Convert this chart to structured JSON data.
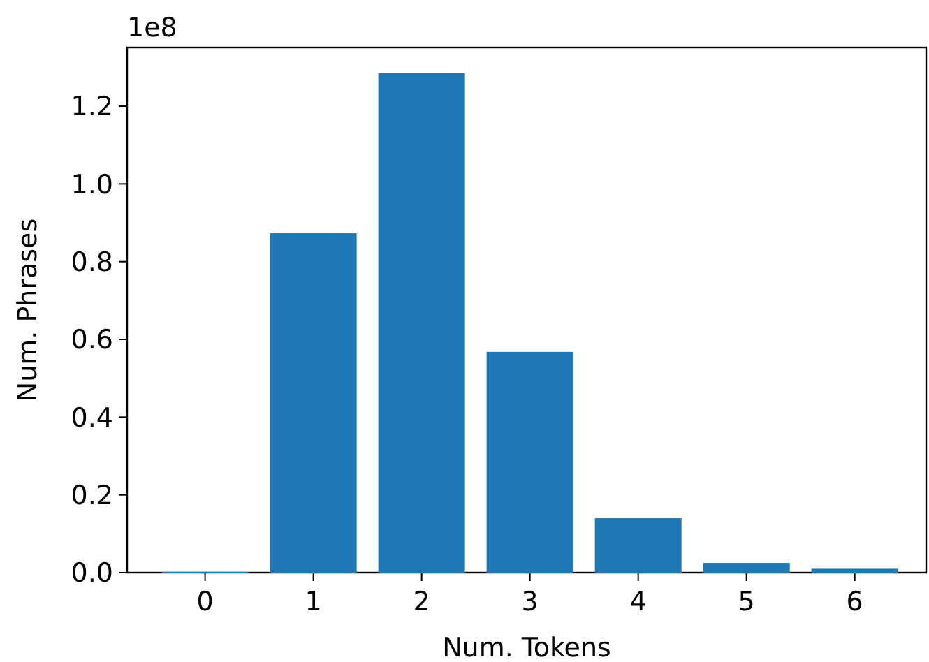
{
  "chart_data": {
    "type": "bar",
    "xlabel": "Num. Tokens",
    "ylabel": "Num. Phrases",
    "annotations": [
      "1e8"
    ],
    "x": [
      0,
      1,
      2,
      3,
      4,
      5,
      6
    ],
    "values": [
      0.002,
      0.873,
      1.286,
      0.568,
      0.14,
      0.025,
      0.01
    ],
    "color": "#1f77b4",
    "xlim": [
      -0.72,
      6.66
    ],
    "xticks": [
      0,
      1,
      2,
      3,
      4,
      5,
      6
    ],
    "ylim": [
      0,
      1.351
    ],
    "yticks": [
      {
        "value": 0,
        "label": "0.0"
      },
      0.2,
      0.4,
      0.6,
      0.8,
      {
        "value": 1,
        "label": "1.0"
      },
      1.2
    ],
    "grid": false
  }
}
